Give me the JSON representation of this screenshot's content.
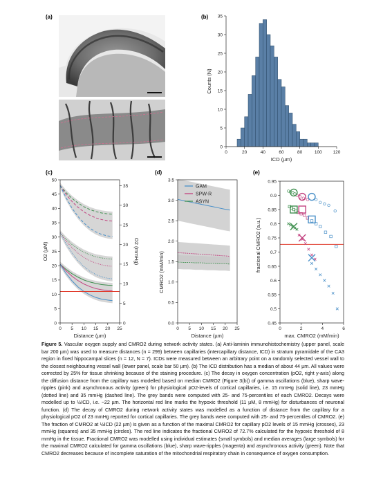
{
  "panel_labels": {
    "a": "(a)",
    "b": "(b)",
    "c": "(c)",
    "d": "(d)",
    "e": "(e)"
  },
  "caption": {
    "label": "Figure 5.",
    "text": "Vascular oxygen supply and CMRO2 during network activity states. (a) Anti-laminin immunohistochemistry (upper panel, scale bar 200 µm) was used to measure distances (n = 299) between capillaries (intercapillary distance, ICD) in stratum pyramidale of the CA3 region in fixed hippocampal slices (n = 12, N = 7). ICDs were measured between an arbitrary point on a randomly selected vessel wall to the closest neighbouring vessel wall (lower panel, scale bar 50 µm). (b) The ICD distribution has a median of about 44 µm. All values were corrected by 25% for tissue shrinking because of the staining procedure. (c) The decay in oxygen concentration (pO2, right y-axis) along the diffusion distance from the capillary was modelled based on median CMRO2 (Figure 3(b)) of gamma oscillations (blue), sharp wave-ripples (pink) and asynchronous activity (green) for physiological pO2-levels of cortical capillaries, i.e. 15 mmHg (solid line), 23 mmHg (dotted line) and 35 mmHg (dashed line). The grey bands were computed with 25- and 75-percentiles of each CMRO2. Decays were modelled up to ½ICD, i.e. ~22 µm. The horizontal red line marks the hypoxic threshold (11 µM, 8 mmHg) for disturbances of neuronal function. (d) The decay of CMRO2 during network activity states was modelled as a function of distance from the capillary for a physiological pO2 of 23 mmHg reported for cortical capillaries. The grey bands were computed with 25- and 75-percentiles of CMRO2. (e) The fraction of CMRO2 at ½ICD (22 µm) is given as a function of the maximal CMRO2 for capillary pO2 levels of 15 mmHg (crosses), 23 mmHg (squares) and 35 mmHg (circles). The red line indicates the fractional CMRO2 of 72.7% calculated for the hypoxic threshold of 8 mmHg in the tissue. Fractional CMRO2 was modelled using individual estimates (small symbols) and median averages (large symbols) for the maximal CMRO2 calculated for gamma oscillations (blue), sharp wave-ripples (magenta) and asynchronous activity (green). Note that CMRO2 decreases because of incomplete saturation of the mitochondrial respiratory chain in consequence of oxygen consumption."
  },
  "colors": {
    "gam": "#4a90c8",
    "spw": "#c2417f",
    "asyn": "#3f8f4f",
    "threshold": "#e03a2a",
    "band": "#c8c8c8",
    "hist": "#5a7fa6"
  },
  "chart_data": [
    {
      "panel": "b",
      "type": "bar",
      "xlabel": "ICD (µm)",
      "ylabel": "Counts (N)",
      "xlim": [
        0,
        120
      ],
      "ylim": [
        0,
        35
      ],
      "xticks": [
        "0",
        "20",
        "40",
        "60",
        "80",
        "100",
        "120"
      ],
      "yticks": [
        "0",
        "5",
        "10",
        "15",
        "20",
        "25",
        "30",
        "35"
      ],
      "bin_width": 4,
      "bin_starts": [
        12,
        16,
        20,
        24,
        28,
        32,
        36,
        40,
        44,
        48,
        52,
        56,
        60,
        64,
        68,
        72,
        76,
        80,
        84,
        88,
        92,
        96
      ],
      "values": [
        2,
        5,
        8,
        14,
        19,
        24,
        33,
        34,
        30,
        27,
        24,
        18,
        16,
        11,
        9,
        6,
        4,
        2,
        2,
        1,
        1,
        1
      ]
    },
    {
      "panel": "c",
      "type": "line",
      "xlabel": "Distance (µm)",
      "ylabel_left": "O2 (µM)",
      "ylabel_right": "O2 (mmHg)",
      "xlim": [
        0,
        25
      ],
      "ylim_left": [
        0,
        50
      ],
      "ylim_right": [
        0,
        36.5
      ],
      "xticks": [
        "0",
        "5",
        "10",
        "15",
        "20",
        "25"
      ],
      "yticks_left": [
        "0",
        "5",
        "10",
        "15",
        "20",
        "25",
        "30",
        "35",
        "40",
        "45",
        "50"
      ],
      "yticks_right": [
        "0",
        "5",
        "10",
        "15",
        "20",
        "25",
        "30",
        "35"
      ],
      "threshold_uM": 11,
      "x": [
        0,
        2.5,
        5,
        7.5,
        10,
        12.5,
        15,
        17.5,
        20,
        22
      ],
      "series": [
        {
          "group": "35 mmHg",
          "style": "dashed",
          "activity": "ASYN",
          "values": [
            48,
            45.5,
            43.5,
            41.9,
            40.6,
            39.6,
            38.9,
            38.4,
            38.1,
            38.0
          ]
        },
        {
          "group": "35 mmHg",
          "style": "dashed",
          "activity": "SPW-R",
          "values": [
            48,
            44.9,
            42.4,
            40.4,
            38.8,
            37.6,
            36.7,
            36.1,
            35.7,
            35.6
          ]
        },
        {
          "group": "35 mmHg",
          "style": "dashed",
          "activity": "GAM",
          "values": [
            48,
            43.7,
            40.1,
            37.2,
            34.9,
            33.1,
            31.8,
            30.9,
            30.4,
            30.2
          ]
        },
        {
          "group": "23 mmHg",
          "style": "dotted",
          "activity": "ASYN",
          "values": [
            31.5,
            29.2,
            27.4,
            25.9,
            24.7,
            23.8,
            23.1,
            22.7,
            22.4,
            22.3
          ]
        },
        {
          "group": "23 mmHg",
          "style": "dotted",
          "activity": "SPW-R",
          "values": [
            31.5,
            28.6,
            26.3,
            24.4,
            22.9,
            21.7,
            20.9,
            20.3,
            19.9,
            19.8
          ]
        },
        {
          "group": "23 mmHg",
          "style": "dotted",
          "activity": "GAM",
          "values": [
            31.5,
            27.6,
            24.4,
            21.8,
            19.7,
            18.1,
            16.9,
            16.1,
            15.6,
            15.4
          ]
        },
        {
          "group": "15 mmHg",
          "style": "solid",
          "activity": "ASYN",
          "values": [
            20.5,
            18.7,
            17.2,
            16.0,
            15.0,
            14.3,
            13.8,
            13.4,
            13.2,
            13.1
          ]
        },
        {
          "group": "15 mmHg",
          "style": "solid",
          "activity": "SPW-R",
          "values": [
            20.5,
            18.2,
            16.3,
            14.8,
            13.6,
            12.7,
            12.0,
            11.6,
            11.3,
            11.2
          ]
        },
        {
          "group": "15 mmHg",
          "style": "solid",
          "activity": "GAM",
          "values": [
            20.5,
            17.3,
            14.7,
            12.6,
            11.0,
            9.8,
            8.9,
            8.3,
            8.0,
            7.8
          ]
        }
      ]
    },
    {
      "panel": "d",
      "type": "line",
      "xlabel": "Distance (µm)",
      "ylabel": "CMRO2 (mM/min)",
      "xlim": [
        0,
        25
      ],
      "ylim": [
        0,
        3.5
      ],
      "xticks": [
        "0",
        "5",
        "10",
        "15",
        "20",
        "25"
      ],
      "yticks": [
        "0.0",
        "0.5",
        "1.0",
        "1.5",
        "2.0",
        "2.5",
        "3.0",
        "3.5"
      ],
      "x": [
        0,
        2.5,
        5,
        7.5,
        10,
        12.5,
        15,
        17.5,
        20,
        22
      ],
      "legend": [
        "GAM",
        "SPW-R",
        "ASYN"
      ],
      "series": [
        {
          "name": "GAM",
          "values": [
            3.02,
            2.99,
            2.96,
            2.93,
            2.9,
            2.87,
            2.84,
            2.81,
            2.78,
            2.76
          ],
          "band_low": [
            2.5,
            2.47,
            2.44,
            2.41,
            2.38,
            2.35,
            2.32,
            2.29,
            2.26,
            2.24
          ],
          "band_high": [
            3.52,
            3.49,
            3.46,
            3.43,
            3.4,
            3.37,
            3.34,
            3.31,
            3.28,
            3.26
          ]
        },
        {
          "name": "SPW-R",
          "values": [
            1.72,
            1.71,
            1.7,
            1.69,
            1.68,
            1.67,
            1.66,
            1.65,
            1.64,
            1.63
          ],
          "band_low": [
            1.52,
            1.51,
            1.5,
            1.49,
            1.48,
            1.47,
            1.46,
            1.45,
            1.44,
            1.43
          ],
          "band_high": [
            1.98,
            1.97,
            1.96,
            1.95,
            1.94,
            1.93,
            1.92,
            1.91,
            1.9,
            1.89
          ]
        },
        {
          "name": "ASYN",
          "values": [
            1.49,
            1.48,
            1.48,
            1.47,
            1.47,
            1.46,
            1.46,
            1.45,
            1.45,
            1.44
          ],
          "band_low": [
            1.32,
            1.31,
            1.31,
            1.3,
            1.3,
            1.29,
            1.29,
            1.28,
            1.28,
            1.27
          ],
          "band_high": [
            1.66,
            1.65,
            1.65,
            1.64,
            1.64,
            1.63,
            1.63,
            1.62,
            1.62,
            1.61
          ]
        }
      ]
    },
    {
      "panel": "e",
      "type": "scatter",
      "xlabel": "max. CMRO2 (mM/min)",
      "ylabel": "fractional CMRO2 (a.u.)",
      "xlim": [
        0,
        6
      ],
      "ylim": [
        0.45,
        0.95
      ],
      "xticks": [
        "0",
        "2",
        "4",
        "6"
      ],
      "yticks": [
        "0.45",
        "0.5",
        "0.55",
        "0.6",
        "0.65",
        "0.7",
        "0.75",
        "0.8",
        "0.85",
        "0.9",
        "0.95"
      ],
      "threshold": 0.727,
      "points_small": [
        {
          "activity": "ASYN",
          "marker": "circle",
          "x": [
            0.8,
            1.0,
            1.2,
            1.4
          ],
          "y": [
            0.915,
            0.912,
            0.91,
            0.905
          ]
        },
        {
          "activity": "ASYN",
          "marker": "square",
          "x": [
            0.9,
            1.1,
            1.3,
            1.5
          ],
          "y": [
            0.86,
            0.855,
            0.85,
            0.845
          ]
        },
        {
          "activity": "ASYN",
          "marker": "cross",
          "x": [
            0.8,
            1.0,
            1.2,
            1.4,
            1.6
          ],
          "y": [
            0.8,
            0.795,
            0.79,
            0.785,
            0.78
          ]
        },
        {
          "activity": "SPW-R",
          "marker": "circle",
          "x": [
            1.6,
            1.9,
            2.2,
            2.6
          ],
          "y": [
            0.9,
            0.895,
            0.89,
            0.885
          ]
        },
        {
          "activity": "SPW-R",
          "marker": "square",
          "x": [
            1.7,
            2.0,
            2.3,
            2.6
          ],
          "y": [
            0.84,
            0.835,
            0.83,
            0.82
          ]
        },
        {
          "activity": "SPW-R",
          "marker": "cross",
          "x": [
            1.8,
            2.1,
            2.4,
            2.7,
            3.0,
            3.3
          ],
          "y": [
            0.76,
            0.745,
            0.73,
            0.71,
            0.69,
            0.675
          ]
        },
        {
          "activity": "GAM",
          "marker": "circle",
          "x": [
            3.4,
            3.8,
            4.2,
            4.6,
            5.2
          ],
          "y": [
            0.885,
            0.875,
            0.87,
            0.865,
            0.845
          ]
        },
        {
          "activity": "GAM",
          "marker": "square",
          "x": [
            3.0,
            3.4,
            3.8,
            4.3,
            4.8,
            5.3
          ],
          "y": [
            0.81,
            0.8,
            0.79,
            0.77,
            0.755,
            0.72
          ]
        },
        {
          "activity": "GAM",
          "marker": "cross",
          "x": [
            3.0,
            3.4,
            3.8,
            4.2,
            4.6,
            5.0,
            5.4
          ],
          "y": [
            0.66,
            0.64,
            0.62,
            0.6,
            0.58,
            0.555,
            0.5
          ]
        }
      ],
      "points_median": [
        {
          "activity": "ASYN",
          "marker": "circle",
          "x": 1.3,
          "y": 0.91
        },
        {
          "activity": "ASYN",
          "marker": "square",
          "x": 1.3,
          "y": 0.85
        },
        {
          "activity": "ASYN",
          "marker": "cross",
          "x": 1.3,
          "y": 0.79
        },
        {
          "activity": "SPW-R",
          "marker": "circle",
          "x": 2.1,
          "y": 0.895
        },
        {
          "activity": "SPW-R",
          "marker": "square",
          "x": 2.1,
          "y": 0.85
        },
        {
          "activity": "SPW-R",
          "marker": "cross",
          "x": 2.1,
          "y": 0.75
        },
        {
          "activity": "GAM",
          "marker": "circle",
          "x": 3.0,
          "y": 0.895
        },
        {
          "activity": "GAM",
          "marker": "square",
          "x": 3.0,
          "y": 0.815
        },
        {
          "activity": "GAM",
          "marker": "cross",
          "x": 3.0,
          "y": 0.68
        }
      ]
    }
  ]
}
